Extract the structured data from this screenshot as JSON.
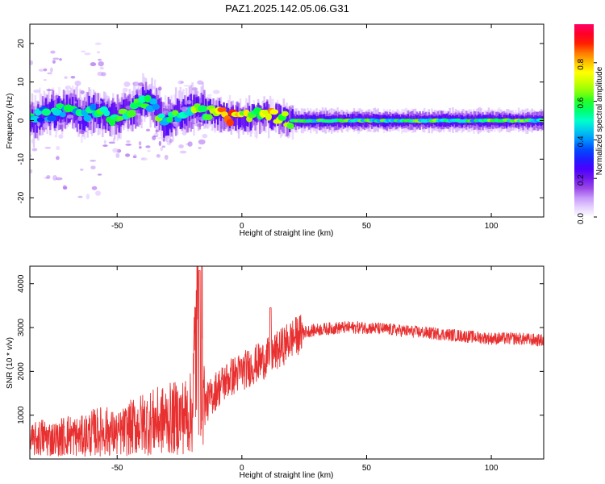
{
  "title": "PAZ1.2025.142.05.06.G31",
  "colors": {
    "snr_line": "#e83030",
    "background": "#ffffff",
    "axis": "#000000",
    "colormap": [
      "#ffffff",
      "#d6b3ff",
      "#8a2be2",
      "#4b00ff",
      "#0033ff",
      "#00aaff",
      "#00ffcc",
      "#00ff33",
      "#aaff00",
      "#ffff00",
      "#ff9900",
      "#ff0000",
      "#ff0066"
    ]
  },
  "chart_data": [
    {
      "type": "heatmap",
      "xlabel": "Height of straight line (km)",
      "ylabel": "Frequency (Hz)",
      "xlim": [
        -85,
        121
      ],
      "ylim": [
        -25,
        25
      ],
      "xticks": [
        -50,
        0,
        50,
        100
      ],
      "yticks": [
        20,
        10,
        0,
        -10,
        -20
      ],
      "colorbar": {
        "label": "Normalized spectral amplitude",
        "range": [
          0,
          1
        ],
        "ticks": [
          0.0,
          0.2,
          0.4,
          0.6,
          0.8
        ]
      },
      "ridge": [
        {
          "x": -82,
          "f": 1.5,
          "a": 0.4
        },
        {
          "x": -76,
          "f": 2.0,
          "a": 0.45
        },
        {
          "x": -70,
          "f": 3.0,
          "a": 0.5
        },
        {
          "x": -64,
          "f": 1.5,
          "a": 0.5
        },
        {
          "x": -58,
          "f": 2.5,
          "a": 0.5
        },
        {
          "x": -52,
          "f": 1.0,
          "a": 0.55
        },
        {
          "x": -46,
          "f": 2.0,
          "a": 0.55
        },
        {
          "x": -40,
          "f": 5.0,
          "a": 0.5
        },
        {
          "x": -36,
          "f": 4.5,
          "a": 0.5
        },
        {
          "x": -32,
          "f": 0.0,
          "a": 0.55
        },
        {
          "x": -26,
          "f": 1.5,
          "a": 0.5
        },
        {
          "x": -20,
          "f": 3.0,
          "a": 0.55
        },
        {
          "x": -15,
          "f": 2.5,
          "a": 0.6
        },
        {
          "x": -10,
          "f": 1.5,
          "a": 0.7
        },
        {
          "x": -5,
          "f": 1.0,
          "a": 0.85
        },
        {
          "x": 0,
          "f": 0.5,
          "a": 0.75
        },
        {
          "x": 5,
          "f": 1.0,
          "a": 0.65
        },
        {
          "x": 10,
          "f": 1.5,
          "a": 0.7
        },
        {
          "x": 15,
          "f": 0.5,
          "a": 0.75
        },
        {
          "x": 20,
          "f": 0.0,
          "a": 0.6
        },
        {
          "x": 30,
          "f": 0.0,
          "a": 0.55
        },
        {
          "x": 40,
          "f": 0.0,
          "a": 0.55
        },
        {
          "x": 50,
          "f": 0.0,
          "a": 0.55
        },
        {
          "x": 60,
          "f": 0.0,
          "a": 0.5
        },
        {
          "x": 70,
          "f": 0.0,
          "a": 0.55
        },
        {
          "x": 80,
          "f": 0.0,
          "a": 0.55
        },
        {
          "x": 90,
          "f": 0.0,
          "a": 0.5
        },
        {
          "x": 100,
          "f": 0.0,
          "a": 0.55
        },
        {
          "x": 110,
          "f": 0.0,
          "a": 0.6
        },
        {
          "x": 120,
          "f": 0.0,
          "a": 0.5
        }
      ]
    },
    {
      "type": "line",
      "xlabel": "Height of straight line (km)",
      "ylabel": "SNR (10 * v/v)",
      "xlim": [
        -85,
        121
      ],
      "ylim": [
        0,
        4400
      ],
      "xticks": [
        -50,
        0,
        50,
        100
      ],
      "yticks": [
        1000,
        2000,
        3000,
        4000
      ],
      "series": [
        {
          "x": [
            -85,
            -80,
            -75,
            -70,
            -65,
            -60,
            -55,
            -50,
            -45,
            -40,
            -35,
            -30,
            -25,
            -20,
            -17,
            -15,
            -10,
            -5,
            0,
            5,
            10,
            15,
            20,
            25,
            30,
            40,
            50,
            60,
            70,
            80,
            90,
            100,
            110,
            121
          ],
          "y": [
            400,
            500,
            450,
            550,
            500,
            600,
            650,
            550,
            700,
            800,
            850,
            900,
            950,
            1050,
            4300,
            1200,
            1600,
            1850,
            2000,
            2150,
            2300,
            2500,
            2750,
            2900,
            2950,
            3000,
            3000,
            2950,
            2900,
            2850,
            2800,
            2750,
            2750,
            2700
          ]
        }
      ]
    }
  ]
}
